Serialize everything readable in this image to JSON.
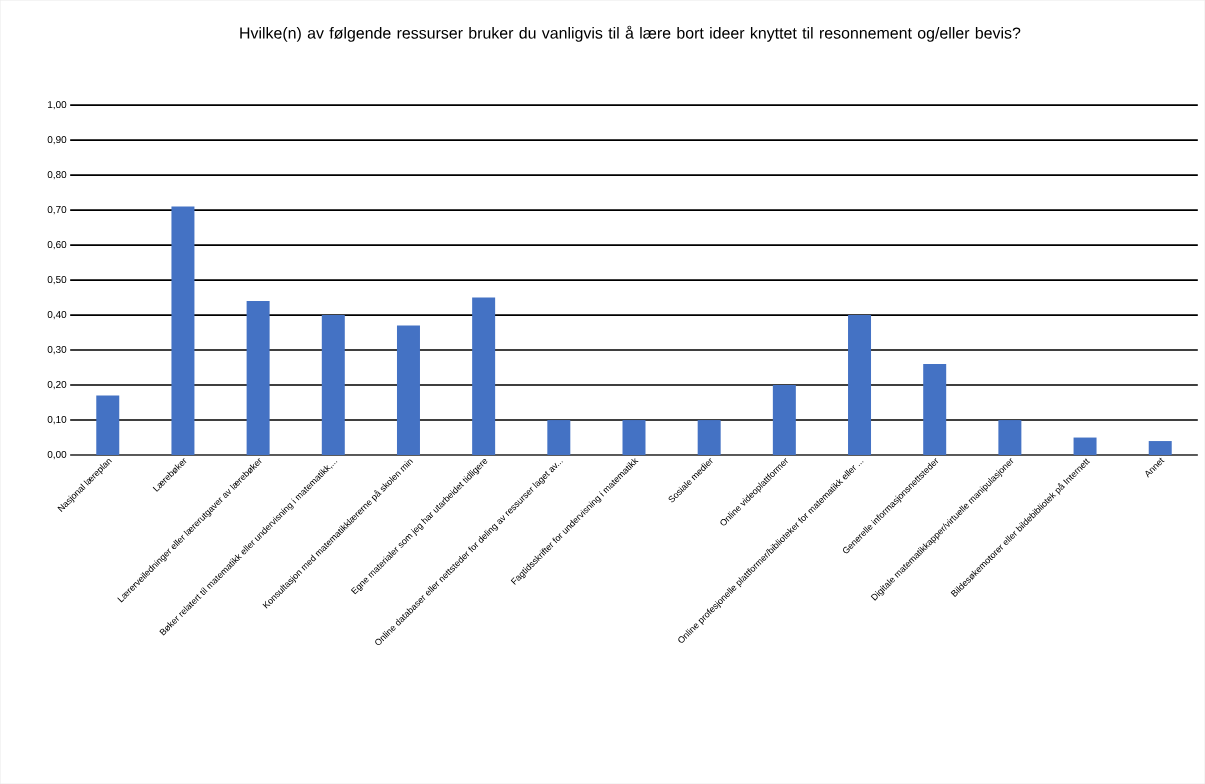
{
  "chart_data": {
    "type": "bar",
    "title": "Hvilke(n) av følgende ressurser bruker du vanligvis til å lære bort ideer knyttet til resonnement og/eller bevis?",
    "categories": [
      "Nasjonal læreplan",
      "Lærebøker",
      "Lærerveiledninger eller lærerutgaver av lærebøker",
      "Bøker relatert til matematikk eller undervisning i matematikk,...",
      "Konsultasjon med matematikklærerne på skolen min",
      "Egne materialer som jeg har utarbeidet tidligere",
      "Online databaser eller nettsteder for deling av ressurser laget av...",
      "Fagtidsskrifter for undervisning i matematikk",
      "Sosiale medier",
      "Online videoplattformer",
      "Online profesjonelle plattformer/biblioteker for matematikk eller ...",
      "Generelle informasjonsnettsteder",
      "Digitale matematikkapper/virtuelle manipulasjoner",
      "Bildesøkemotorer eller bildebibliotek på Internett",
      "Annet"
    ],
    "values": [
      0.17,
      0.71,
      0.44,
      0.4,
      0.37,
      0.45,
      0.1,
      0.1,
      0.1,
      0.2,
      0.4,
      0.26,
      0.1,
      0.05,
      0.04
    ],
    "color": "#4472c4",
    "ylim": [
      0,
      1
    ],
    "yticks": [
      {
        "value": 0,
        "label": "0,00"
      },
      {
        "value": 0.1,
        "label": "0,10"
      },
      {
        "value": 0.2,
        "label": "0,20"
      },
      {
        "value": 0.3,
        "label": "0,30"
      },
      {
        "value": 0.4,
        "label": "0,40"
      },
      {
        "value": 0.5,
        "label": "0,50"
      },
      {
        "value": 0.6,
        "label": "0,60"
      },
      {
        "value": 0.7,
        "label": "0,70"
      },
      {
        "value": 0.8,
        "label": "0,80"
      },
      {
        "value": 0.9,
        "label": "0,90"
      },
      {
        "value": 1,
        "label": "1,00"
      }
    ],
    "grid": "y"
  }
}
